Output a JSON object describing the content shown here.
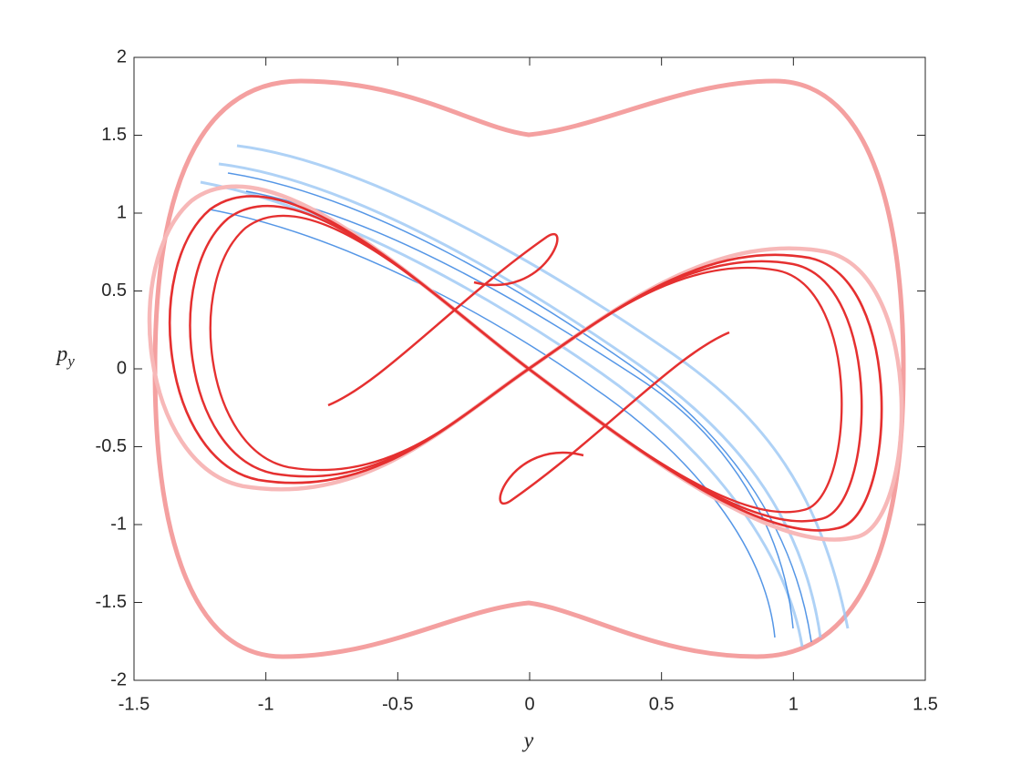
{
  "chart_data": {
    "type": "image",
    "xlabel": "y",
    "ylabel": {
      "text": "p",
      "subscript": "y"
    },
    "xlim": [
      -1.5,
      1.5
    ],
    "xticks": [
      -1.5,
      -1,
      -0.5,
      0,
      0.5,
      1,
      1.5
    ],
    "ylim": [
      -2,
      2
    ],
    "yticks": [
      -2,
      -1.5,
      -1,
      -0.5,
      0,
      0.5,
      1,
      1.5,
      2
    ],
    "box": true
  }
}
